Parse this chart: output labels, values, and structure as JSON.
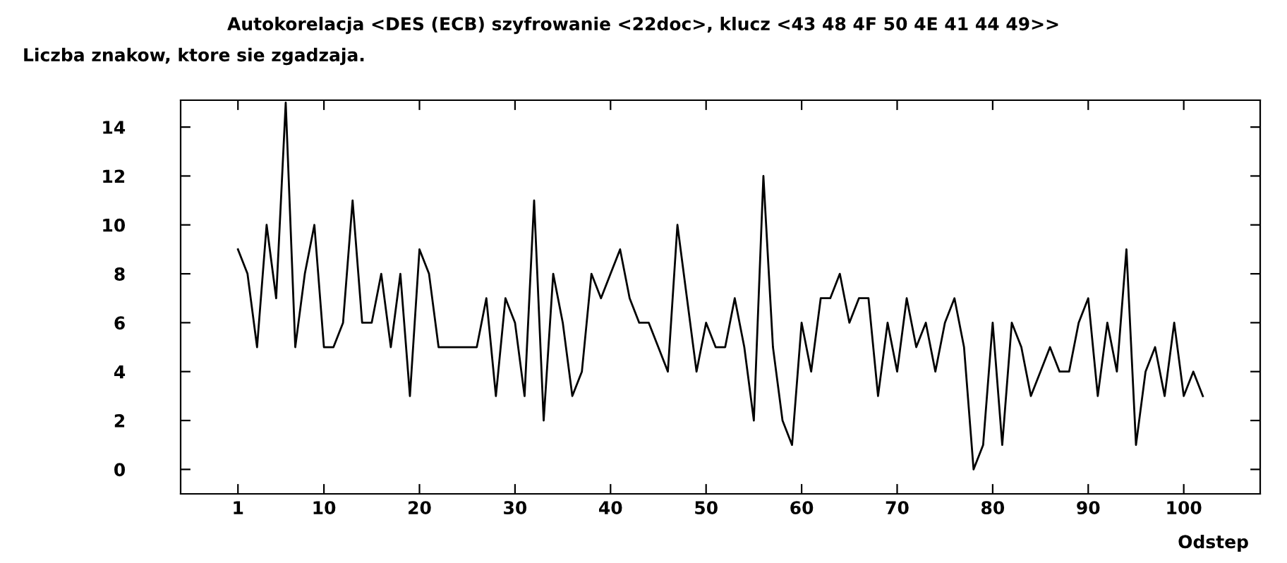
{
  "chart_data": {
    "type": "line",
    "title": "Autokorelacja <DES (ECB) szyfrowanie <22doc>, klucz <43 48 4F 50 4E 41 44 49>>",
    "ylabel": "Liczba znakow, ktore sie zgadzaja.",
    "xlabel": "Odstep",
    "x": [
      1,
      2,
      3,
      4,
      5,
      6,
      7,
      8,
      9,
      10,
      11,
      12,
      13,
      14,
      15,
      16,
      17,
      18,
      19,
      20,
      21,
      22,
      23,
      24,
      25,
      26,
      27,
      28,
      29,
      30,
      31,
      32,
      33,
      34,
      35,
      36,
      37,
      38,
      39,
      40,
      41,
      42,
      43,
      44,
      45,
      46,
      47,
      48,
      49,
      50,
      51,
      52,
      53,
      54,
      55,
      56,
      57,
      58,
      59,
      60,
      61,
      62,
      63,
      64,
      65,
      66,
      67,
      68,
      69,
      70,
      71,
      72,
      73,
      74,
      75,
      76,
      77,
      78,
      79,
      80,
      81,
      82,
      83,
      84,
      85,
      86,
      87,
      88,
      89,
      90,
      91,
      92,
      93,
      94,
      95,
      96,
      97,
      98,
      99,
      100,
      101,
      102
    ],
    "values": [
      9,
      8,
      5,
      10,
      7,
      15,
      5,
      8,
      10,
      5,
      5,
      6,
      11,
      6,
      6,
      8,
      5,
      8,
      3,
      9,
      8,
      5,
      5,
      5,
      5,
      5,
      7,
      3,
      7,
      6,
      3,
      11,
      2,
      8,
      6,
      3,
      4,
      8,
      7,
      8,
      9,
      7,
      6,
      6,
      5,
      4,
      10,
      7,
      4,
      6,
      5,
      5,
      7,
      5,
      2,
      12,
      5,
      2,
      1,
      6,
      4,
      7,
      7,
      8,
      6,
      7,
      7,
      3,
      6,
      4,
      7,
      5,
      6,
      4,
      6,
      7,
      5,
      0,
      1,
      6,
      1,
      6,
      5,
      3,
      4,
      5,
      4,
      4,
      6,
      7,
      3,
      6,
      4,
      9,
      1,
      4,
      5,
      3,
      6,
      3,
      4,
      3
    ],
    "color": "#000000",
    "xlim": [
      -5,
      108
    ],
    "xticks": [
      1,
      10,
      20,
      30,
      40,
      50,
      60,
      70,
      80,
      90,
      100
    ],
    "ylim": [
      -1,
      15.1
    ],
    "yticks": [
      0,
      2,
      4,
      6,
      8,
      10,
      12,
      14
    ],
    "grid": false,
    "legend": false,
    "marker": "none",
    "line_style": "solid"
  }
}
